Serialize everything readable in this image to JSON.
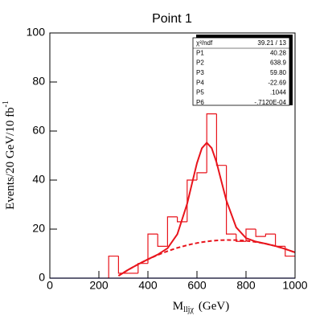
{
  "chart_data": {
    "type": "histogram",
    "title": "Point 1",
    "x_label": {
      "main": "M",
      "sub": "lljχ",
      "unit": "(GeV)"
    },
    "y_label": {
      "main": "Events/20 GeV/10 fb",
      "sup": "-1"
    },
    "bins": [
      240,
      280,
      320,
      360,
      400,
      440,
      480,
      520,
      560,
      600,
      640,
      680,
      720,
      760,
      800,
      840,
      880,
      920,
      960,
      1000
    ],
    "values": [
      9,
      2,
      2,
      6,
      18,
      13,
      25,
      23,
      40,
      43,
      67,
      46,
      18,
      15,
      20,
      17,
      18,
      13,
      9
    ],
    "color": "#e8141c",
    "fit": {
      "x": [
        280,
        320,
        360,
        400,
        440,
        480,
        520,
        560,
        580,
        600,
        620,
        640,
        660,
        680,
        700,
        720,
        760,
        800,
        840,
        880,
        920,
        960,
        1000
      ],
      "series": [
        {
          "style": "solid",
          "color": "#e8141c",
          "values": [
            0.96,
            3.43,
            5.67,
            7.69,
            9.62,
            12.2,
            17.93,
            30.33,
            38.71,
            46.92,
            52.97,
            55.23,
            53.05,
            47.18,
            39.4,
            31.64,
            20.71,
            16.33,
            14.91,
            14.06,
            13.1,
            11.92,
            10.51
          ]
        },
        {
          "style": "dashed",
          "color": "#e8141c",
          "values": [
            0.96,
            3.43,
            5.67,
            7.68,
            9.46,
            11.02,
            12.35,
            13.45,
            13.91,
            14.32,
            14.67,
            14.96,
            15.2,
            15.38,
            15.5,
            15.57,
            15.53,
            15.26,
            14.77,
            14.05,
            13.1,
            11.92,
            10.51
          ]
        }
      ]
    },
    "xlim": [
      0,
      1000
    ],
    "xticks": [
      0,
      200,
      400,
      600,
      800,
      1000
    ],
    "ylim": [
      0,
      100
    ],
    "yticks": [
      0,
      20,
      40,
      60,
      80,
      100
    ],
    "stats": {
      "header": {
        "label": "χ²/ndf",
        "value": "39.21  /  13"
      },
      "rows": [
        [
          "P1",
          "40.28"
        ],
        [
          "P2",
          "638.9"
        ],
        [
          "P3",
          "59.80"
        ],
        [
          "P4",
          "-22.69"
        ],
        [
          "P5",
          ".1044"
        ],
        [
          "P6",
          "-.7120E-04"
        ]
      ]
    }
  }
}
